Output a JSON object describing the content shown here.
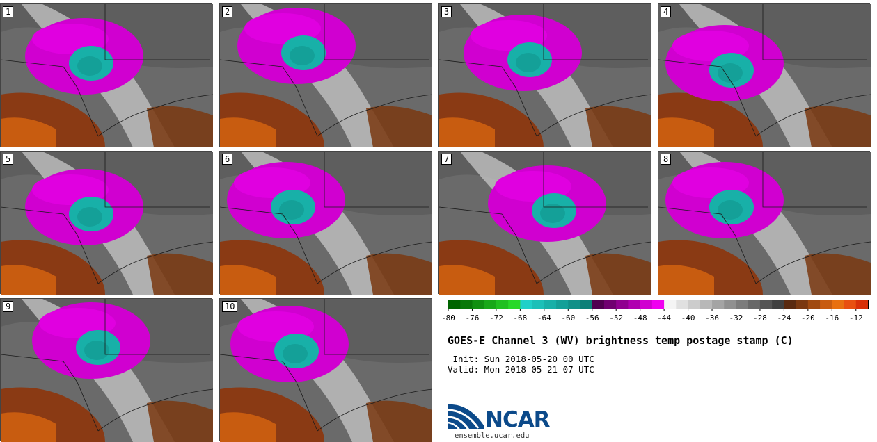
{
  "panels": [
    {
      "label": "1"
    },
    {
      "label": "2"
    },
    {
      "label": "3"
    },
    {
      "label": "4"
    },
    {
      "label": "5"
    },
    {
      "label": "6"
    },
    {
      "label": "7"
    },
    {
      "label": "8"
    },
    {
      "label": "9"
    },
    {
      "label": "10"
    }
  ],
  "chart_data": {
    "type": "heatmap",
    "title": "GOES-E Channel 3 (WV) brightness temp postage stamp (C)",
    "init": " Init: Sun 2018-05-20 00 UTC",
    "valid": "Valid: Mon 2018-05-21 07 UTC",
    "colorbar": {
      "min": -80,
      "max": -10,
      "ticks": [
        -80,
        -76,
        -72,
        -68,
        -64,
        -60,
        -56,
        -52,
        -48,
        -44,
        -40,
        -36,
        -32,
        -28,
        -24,
        -20,
        -16,
        -12
      ],
      "bins": [
        {
          "from": -80,
          "to": -78,
          "color": "#006400"
        },
        {
          "from": -78,
          "to": -76,
          "color": "#087808"
        },
        {
          "from": -76,
          "to": -74,
          "color": "#109010"
        },
        {
          "from": -74,
          "to": -72,
          "color": "#18a818"
        },
        {
          "from": -72,
          "to": -70,
          "color": "#20c020"
        },
        {
          "from": -70,
          "to": -68,
          "color": "#28d828"
        },
        {
          "from": -68,
          "to": -66,
          "color": "#20d0c8"
        },
        {
          "from": -66,
          "to": -64,
          "color": "#1cc0b8"
        },
        {
          "from": -64,
          "to": -62,
          "color": "#18b0a8"
        },
        {
          "from": -62,
          "to": -60,
          "color": "#14a098"
        },
        {
          "from": -60,
          "to": -58,
          "color": "#109088"
        },
        {
          "from": -58,
          "to": -56,
          "color": "#0c8078"
        },
        {
          "from": -56,
          "to": -54,
          "color": "#500050"
        },
        {
          "from": -54,
          "to": -52,
          "color": "#700070"
        },
        {
          "from": -52,
          "to": -50,
          "color": "#900090"
        },
        {
          "from": -50,
          "to": -48,
          "color": "#b000b0"
        },
        {
          "from": -48,
          "to": -46,
          "color": "#d000d0"
        },
        {
          "from": -46,
          "to": -44,
          "color": "#f000f0"
        },
        {
          "from": -44,
          "to": -42,
          "color": "#f4f4f4"
        },
        {
          "from": -42,
          "to": -40,
          "color": "#e0e0e0"
        },
        {
          "from": -40,
          "to": -38,
          "color": "#cccccc"
        },
        {
          "from": -38,
          "to": -36,
          "color": "#b8b8b8"
        },
        {
          "from": -36,
          "to": -34,
          "color": "#a4a4a4"
        },
        {
          "from": -34,
          "to": -32,
          "color": "#909090"
        },
        {
          "from": -32,
          "to": -30,
          "color": "#7c7c7c"
        },
        {
          "from": -30,
          "to": -28,
          "color": "#686868"
        },
        {
          "from": -28,
          "to": -26,
          "color": "#545454"
        },
        {
          "from": -26,
          "to": -24,
          "color": "#404040"
        },
        {
          "from": -24,
          "to": -22,
          "color": "#5a2a10"
        },
        {
          "from": -22,
          "to": -20,
          "color": "#7a3810"
        },
        {
          "from": -20,
          "to": -18,
          "color": "#a04a10"
        },
        {
          "from": -18,
          "to": -16,
          "color": "#c85c10"
        },
        {
          "from": -16,
          "to": -14,
          "color": "#e87010"
        },
        {
          "from": -14,
          "to": -12,
          "color": "#e85010"
        },
        {
          "from": -12,
          "to": -10,
          "color": "#d83008"
        }
      ]
    }
  },
  "logo": {
    "word": "NCAR",
    "url": "ensemble.ucar.edu"
  }
}
